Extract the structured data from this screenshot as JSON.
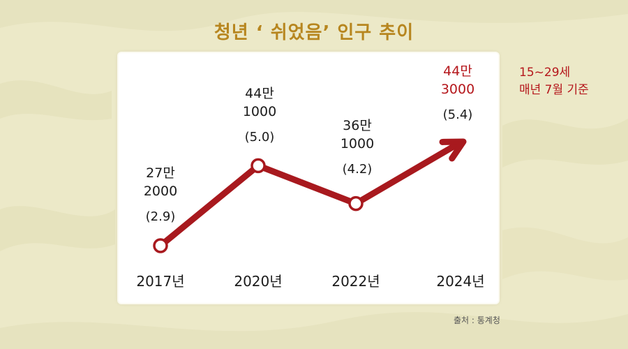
{
  "title": "청년 ‘ 쉬었음’ 인구 추이",
  "note": {
    "line1": "15~29세",
    "line2": "매년 7월 기준"
  },
  "source": "출처 : 통계청",
  "colors": {
    "line": "#a8191e",
    "highlight": "#b5171c",
    "title": "#b7861f",
    "background": "#ece9c8"
  },
  "chart_data": {
    "type": "line",
    "categories": [
      "2017년",
      "2020년",
      "2022년",
      "2024년"
    ],
    "series": [
      {
        "values": [
          272000,
          441000,
          361000,
          443000
        ],
        "value_labels": [
          [
            "27만",
            "2000"
          ],
          [
            "44만",
            "1000"
          ],
          [
            "36만",
            "1000"
          ],
          [
            "44만",
            "3000"
          ]
        ],
        "share_labels": [
          "(2.9)",
          "(5.0)",
          "(4.2)",
          "(5.4)"
        ]
      }
    ],
    "last_point_arrow": true,
    "grid": false,
    "legend": "none"
  }
}
